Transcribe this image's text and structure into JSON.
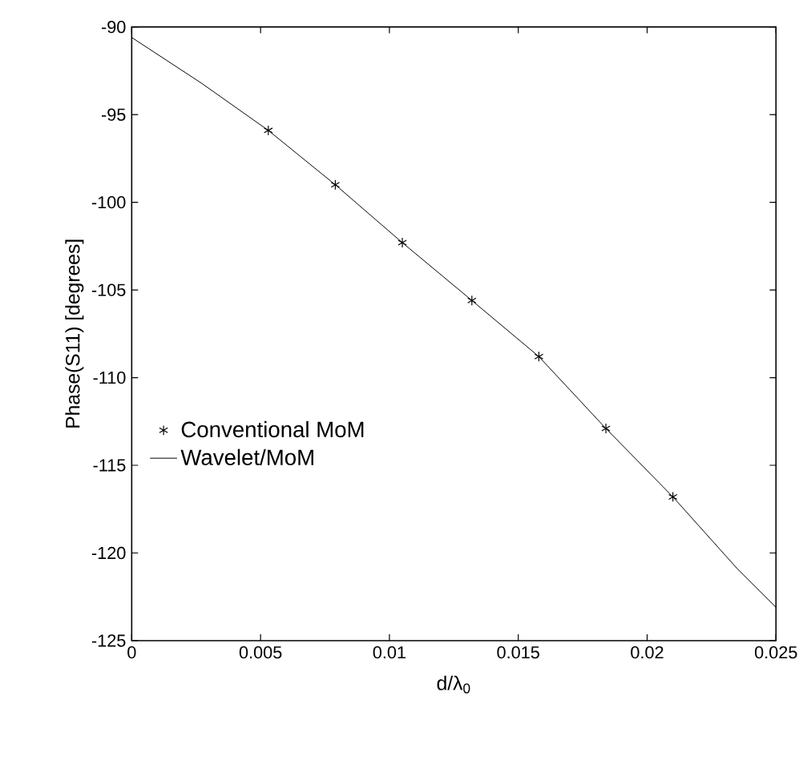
{
  "chart_data": {
    "type": "line",
    "xlabel": "d/λ$_{0}$",
    "ylabel": "Phase(S11) [degrees]",
    "series": [
      {
        "name": "Conventional MoM",
        "type": "scatter",
        "marker": "cross",
        "color": "#000000",
        "x": [
          0.0053,
          0.0079,
          0.0105,
          0.0132,
          0.0158,
          0.0184,
          0.021
        ],
        "values": [
          -95.9,
          -99.0,
          -102.3,
          -105.6,
          -108.8,
          -112.9,
          -116.8
        ]
      },
      {
        "name": "Wavelet/MoM",
        "marker": "none",
        "color": "#000000",
        "x": [
          0,
          0.0027,
          0.0053,
          0.0079,
          0.0105,
          0.0132,
          0.0158,
          0.0184,
          0.021,
          0.0235,
          0.025
        ],
        "values": [
          -90.6,
          -93.2,
          -95.9,
          -99.0,
          -102.3,
          -105.6,
          -108.8,
          -112.9,
          -116.8,
          -120.9,
          -123.1
        ]
      }
    ],
    "xlim": [
      0,
      0.025
    ],
    "ylim": [
      -125,
      -90
    ],
    "xticks": [
      0,
      0.005,
      0.01,
      0.015,
      0.02,
      0.025
    ],
    "yticks": [
      -125,
      -120,
      -115,
      -110,
      -105,
      -100,
      -95,
      -90
    ],
    "grid": false,
    "legend": "left"
  }
}
